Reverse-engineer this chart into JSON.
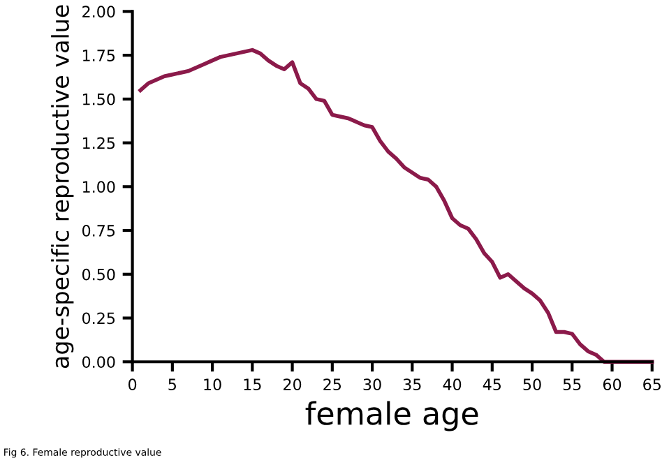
{
  "chart_data": {
    "type": "line",
    "xlabel": "female age",
    "ylabel": "age-specific reproductive value",
    "annotations": [
      "Fig 6. Female reproductive value"
    ],
    "x": [
      1,
      2,
      3,
      4,
      5,
      6,
      7,
      8,
      9,
      10,
      11,
      12,
      13,
      14,
      15,
      16,
      17,
      18,
      19,
      20,
      21,
      22,
      23,
      24,
      25,
      26,
      27,
      28,
      29,
      30,
      31,
      32,
      33,
      34,
      35,
      36,
      37,
      38,
      39,
      40,
      41,
      42,
      43,
      44,
      45,
      46,
      47,
      48,
      49,
      50,
      51,
      52,
      53,
      54,
      55,
      56,
      57,
      58,
      59,
      60,
      61,
      62,
      63,
      64,
      65
    ],
    "series": [
      {
        "color": "#8b1a4a",
        "values": [
          1.55,
          1.59,
          1.61,
          1.63,
          1.64,
          1.65,
          1.66,
          1.68,
          1.7,
          1.72,
          1.74,
          1.75,
          1.76,
          1.77,
          1.78,
          1.76,
          1.72,
          1.69,
          1.67,
          1.71,
          1.59,
          1.56,
          1.5,
          1.49,
          1.41,
          1.4,
          1.39,
          1.37,
          1.35,
          1.34,
          1.26,
          1.2,
          1.16,
          1.11,
          1.08,
          1.05,
          1.04,
          1.0,
          0.92,
          0.82,
          0.78,
          0.76,
          0.7,
          0.62,
          0.57,
          0.48,
          0.5,
          0.46,
          0.42,
          0.39,
          0.35,
          0.28,
          0.17,
          0.17,
          0.16,
          0.1,
          0.06,
          0.04,
          0,
          0,
          0,
          0,
          0,
          0,
          0
        ]
      }
    ],
    "xlim": [
      0,
      65
    ],
    "ylim": [
      0,
      2
    ],
    "xticks": [
      0,
      5,
      10,
      15,
      20,
      25,
      30,
      35,
      40,
      45,
      50,
      55,
      60,
      65
    ],
    "yticks": [
      {
        "value": 0,
        "label": "0.00"
      },
      {
        "value": 0.25,
        "label": "0.25"
      },
      {
        "value": 0.5,
        "label": "0.50"
      },
      {
        "value": 0.75,
        "label": "0.75"
      },
      {
        "value": 1,
        "label": "1.00"
      },
      {
        "value": 1.25,
        "label": "1.25"
      },
      {
        "value": 1.5,
        "label": "1.50"
      },
      {
        "value": 1.75,
        "label": "1.75"
      },
      {
        "value": 2,
        "label": "2.00"
      }
    ],
    "grid": false,
    "marker": "none",
    "line_style": "solid"
  }
}
